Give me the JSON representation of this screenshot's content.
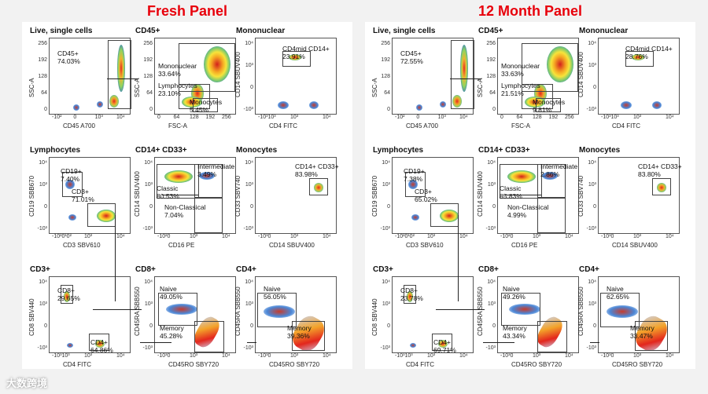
{
  "panels": [
    {
      "title": "Fresh Panel",
      "plots": [
        {
          "title": "Live, single cells",
          "xlabel": "CD45 A700",
          "ylabel": "SSC-A",
          "yticks": [
            "256",
            "192",
            "128",
            "64",
            "0"
          ],
          "xticks": [
            "-10²",
            "0",
            "10³",
            "10⁴"
          ],
          "labels": [
            "CD45+\n74.03%"
          ]
        },
        {
          "title": "CD45+",
          "xlabel": "FSC-A",
          "ylabel": "SSC-A",
          "yticks": [
            "256",
            "192",
            "128",
            "64",
            "0"
          ],
          "xticks": [
            "0",
            "64",
            "128",
            "192",
            "256"
          ],
          "labels": [
            "Mononuclear\n33.64%",
            "Lymphocytes\n23.10%",
            "Monocytes\n5.45%"
          ]
        },
        {
          "title": "Mononuclear",
          "xlabel": "CD4 FITC",
          "ylabel": "CD14 SBUV400",
          "yticks": [
            "10⁴",
            "10³",
            "0",
            "-10³"
          ],
          "xticks": [
            "-10³10³",
            "10³",
            "10⁴"
          ],
          "labels": [
            "CD4mid CD14+\n23.91%"
          ]
        },
        {
          "title": "Lymphocytes",
          "xlabel": "CD3 SBV610",
          "ylabel": "CD19 SBB670",
          "yticks": [
            "10⁴",
            "10³",
            "0",
            "-10³"
          ],
          "xticks": [
            "-10²0¹0²",
            "10³",
            "10⁴"
          ],
          "labels": [
            "CD19+\n7.40%",
            "CD3+\n71.01%"
          ]
        },
        {
          "title": "CD14+ CD33+",
          "xlabel": "CD16 PE",
          "ylabel": "CD14 SBUV400",
          "yticks": [
            "10⁴",
            "10³",
            "0",
            "-10³"
          ],
          "xticks": [
            "-10²0",
            "10³",
            "10⁴"
          ],
          "labels": [
            "Intermediate\n3.49%",
            "Classic\n80.53%",
            "Non-Classical\n7.04%"
          ]
        },
        {
          "title": "Monocytes",
          "xlabel": "CD14 SBUV400",
          "ylabel": "CD33 SBV740",
          "yticks": [
            "10⁴",
            "10³",
            "0",
            "-10³"
          ],
          "xticks": [
            "-10³0",
            "10³",
            "10⁴"
          ],
          "labels": [
            "CD14+ CD33+\n83.98%"
          ]
        },
        {
          "title": "CD3+",
          "xlabel": "CD4 FITC",
          "ylabel": "CD8 SBV440",
          "yticks": [
            "10⁴",
            "10³",
            "0",
            "-10³"
          ],
          "xticks": [
            "-10³10³",
            "10³",
            "10⁴"
          ],
          "labels": [
            "CD8+\n29.65%",
            "CD4+\n64.86%"
          ]
        },
        {
          "title": "CD8+",
          "xlabel": "CD45RO SBY720",
          "ylabel": "CD45RA SBB550",
          "yticks": [
            "10⁴",
            "10³",
            "0",
            "-10³"
          ],
          "xticks": [
            "-10³0",
            "10³",
            "10⁴"
          ],
          "labels": [
            "Naive\n49.05%",
            "Memory\n45.28%"
          ]
        },
        {
          "title": "CD4+",
          "xlabel": "CD45RO SBY720",
          "ylabel": "CD45RA SBB550",
          "yticks": [
            "10⁴",
            "10³",
            "0",
            "-10³"
          ],
          "xticks": [
            "-10³0",
            "10³",
            "10⁴"
          ],
          "labels": [
            "Naive\n56.05%",
            "Memory\n39.36%"
          ]
        }
      ]
    },
    {
      "title": "12 Month Panel",
      "plots": [
        {
          "title": "Live, single cells",
          "xlabel": "CD45 A700",
          "ylabel": "SSC-A",
          "yticks": [
            "256",
            "192",
            "128",
            "64",
            "0"
          ],
          "xticks": [
            "-10²",
            "0",
            "10³",
            "10⁴"
          ],
          "labels": [
            "CD45+\n72.55%"
          ]
        },
        {
          "title": "CD45+",
          "xlabel": "FSC-A",
          "ylabel": "SSC-A",
          "yticks": [
            "256",
            "192",
            "128",
            "64",
            "0"
          ],
          "xticks": [
            "0",
            "64",
            "128",
            "192",
            "256"
          ],
          "labels": [
            "Mononuclear\n33.63%",
            "Lymphocytes\n21.51%",
            "Monocytes\n9.81%"
          ]
        },
        {
          "title": "Mononuclear",
          "xlabel": "CD4 FITC",
          "ylabel": "CD14 SBUV400",
          "yticks": [
            "10⁴",
            "10³",
            "0",
            "-10³"
          ],
          "xticks": [
            "-10³10³",
            "10³",
            "10⁴"
          ],
          "labels": [
            "CD4mid CD14+\n28.76%"
          ]
        },
        {
          "title": "Lymphocytes",
          "xlabel": "CD3 SBV610",
          "ylabel": "CD19 SBB670",
          "yticks": [
            "10⁴",
            "10³",
            "0",
            "-10³"
          ],
          "xticks": [
            "-10²0¹0²",
            "10³",
            "10⁴"
          ],
          "labels": [
            "CD19+\n7.38%",
            "CD3+\n65.02%"
          ]
        },
        {
          "title": "CD14+ CD33+",
          "xlabel": "CD16 PE",
          "ylabel": "CD14 SBUV400",
          "yticks": [
            "10⁴",
            "10³",
            "0",
            "-10³"
          ],
          "xticks": [
            "-10²0",
            "10³",
            "10⁴"
          ],
          "labels": [
            "Intermediate\n2.86%",
            "Classic\n85.83%",
            "Non-Classical\n4.99%"
          ]
        },
        {
          "title": "Monocytes",
          "xlabel": "CD14 SBUV400",
          "ylabel": "CD33 SBV740",
          "yticks": [
            "10⁴",
            "10³",
            "0",
            "-10³"
          ],
          "xticks": [
            "-10³0",
            "10³",
            "10⁴"
          ],
          "labels": [
            "CD14+ CD33+\n83.80%"
          ]
        },
        {
          "title": "CD3+",
          "xlabel": "CD4 FITC",
          "ylabel": "CD8 SBV440",
          "yticks": [
            "10⁴",
            "10³",
            "0",
            "-10³"
          ],
          "xticks": [
            "-10³10³",
            "10³",
            "10⁴"
          ],
          "labels": [
            "CD8+\n23.78%",
            "CD4+\n69.71%"
          ]
        },
        {
          "title": "CD8+",
          "xlabel": "CD45RO SBY720",
          "ylabel": "CD45RA SBB550",
          "yticks": [
            "10⁴",
            "10³",
            "0",
            "-10³"
          ],
          "xticks": [
            "-10³0",
            "10³",
            "10⁴"
          ],
          "labels": [
            "Naive\n49.26%",
            "Memory\n43.34%"
          ]
        },
        {
          "title": "CD4+",
          "xlabel": "CD45RO SBY720",
          "ylabel": "CD45RA SBB550",
          "yticks": [
            "10⁴",
            "10³",
            "0",
            "-10³"
          ],
          "xticks": [
            "-10³0",
            "10³",
            "10⁴"
          ],
          "labels": [
            "Naive\n62.65%",
            "Memory\n33.47%"
          ]
        }
      ]
    }
  ],
  "watermark": "大数跨境",
  "colors": {
    "title": "#e8000b"
  }
}
